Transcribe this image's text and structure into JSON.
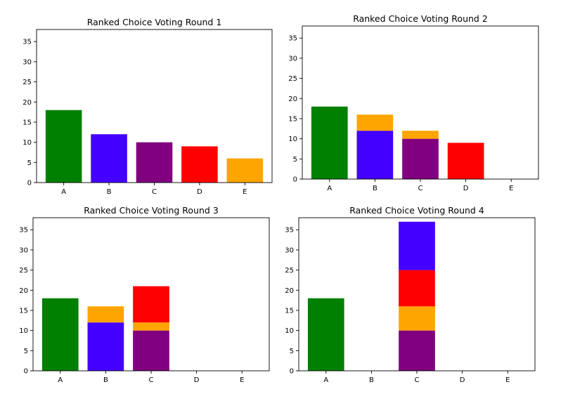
{
  "colors": {
    "A": "#008000",
    "B": "#4400ff",
    "C": "#800080",
    "D": "#ff0000",
    "E": "#ffa500"
  },
  "chart_data": [
    {
      "type": "bar",
      "stacked": true,
      "title": "Ranked Choice Voting Round 1",
      "categories": [
        "A",
        "B",
        "C",
        "D",
        "E"
      ],
      "ylim": [
        0,
        38
      ],
      "yticks": [
        0,
        5,
        10,
        15,
        20,
        25,
        30,
        35
      ],
      "stacks": [
        [
          {
            "source": "A",
            "value": 18
          }
        ],
        [
          {
            "source": "B",
            "value": 12
          }
        ],
        [
          {
            "source": "C",
            "value": 10
          }
        ],
        [
          {
            "source": "D",
            "value": 9
          }
        ],
        [
          {
            "source": "E",
            "value": 6
          }
        ]
      ]
    },
    {
      "type": "bar",
      "stacked": true,
      "title": "Ranked Choice Voting Round 2",
      "categories": [
        "A",
        "B",
        "C",
        "D",
        "E"
      ],
      "ylim": [
        0,
        38
      ],
      "yticks": [
        0,
        5,
        10,
        15,
        20,
        25,
        30,
        35
      ],
      "stacks": [
        [
          {
            "source": "A",
            "value": 18
          }
        ],
        [
          {
            "source": "B",
            "value": 12
          },
          {
            "source": "E",
            "value": 4
          }
        ],
        [
          {
            "source": "C",
            "value": 10
          },
          {
            "source": "E",
            "value": 2
          }
        ],
        [
          {
            "source": "D",
            "value": 9
          }
        ],
        []
      ]
    },
    {
      "type": "bar",
      "stacked": true,
      "title": "Ranked Choice Voting Round 3",
      "categories": [
        "A",
        "B",
        "C",
        "D",
        "E"
      ],
      "ylim": [
        0,
        38
      ],
      "yticks": [
        0,
        5,
        10,
        15,
        20,
        25,
        30,
        35
      ],
      "stacks": [
        [
          {
            "source": "A",
            "value": 18
          }
        ],
        [
          {
            "source": "B",
            "value": 12
          },
          {
            "source": "E",
            "value": 4
          }
        ],
        [
          {
            "source": "C",
            "value": 10
          },
          {
            "source": "E",
            "value": 2
          },
          {
            "source": "D",
            "value": 9
          }
        ],
        [],
        []
      ]
    },
    {
      "type": "bar",
      "stacked": true,
      "title": "Ranked Choice Voting Round 4",
      "categories": [
        "A",
        "B",
        "C",
        "D",
        "E"
      ],
      "ylim": [
        0,
        38
      ],
      "yticks": [
        0,
        5,
        10,
        15,
        20,
        25,
        30,
        35
      ],
      "stacks": [
        [
          {
            "source": "A",
            "value": 18
          }
        ],
        [],
        [
          {
            "source": "C",
            "value": 10
          },
          {
            "source": "E",
            "value": 6
          },
          {
            "source": "D",
            "value": 9
          },
          {
            "source": "B",
            "value": 12
          }
        ],
        [],
        []
      ]
    }
  ]
}
